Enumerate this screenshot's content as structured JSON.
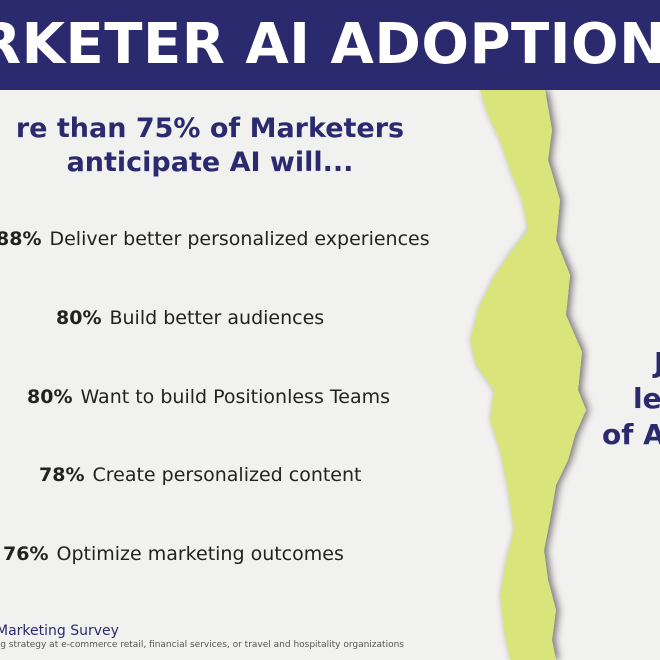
{
  "header": {
    "title": "RKETER AI ADOPTION G"
  },
  "headline": {
    "line1": "re than 75% of Marketers",
    "line2": "anticipate AI will..."
  },
  "stats": [
    {
      "pct": "88%",
      "label": "Deliver better personalized experiences"
    },
    {
      "pct": "80%",
      "label": "Build better audiences"
    },
    {
      "pct": "80%",
      "label": "Want to build Positionless Teams"
    },
    {
      "pct": "78%",
      "label": "Create personalized content"
    },
    {
      "pct": "76%",
      "label": "Optimize marketing outcomes"
    }
  ],
  "footer": {
    "source": "Marketing Survey",
    "note": "ing strategy at e-commerce retail, financial services, or travel and hospitality organizations"
  },
  "right_panel": {
    "line1": "J",
    "line2": "le",
    "line3": "of A"
  },
  "colors": {
    "navy": "#2c2a6e",
    "lime": "#d9e57a",
    "background": "#f1f1f0"
  }
}
